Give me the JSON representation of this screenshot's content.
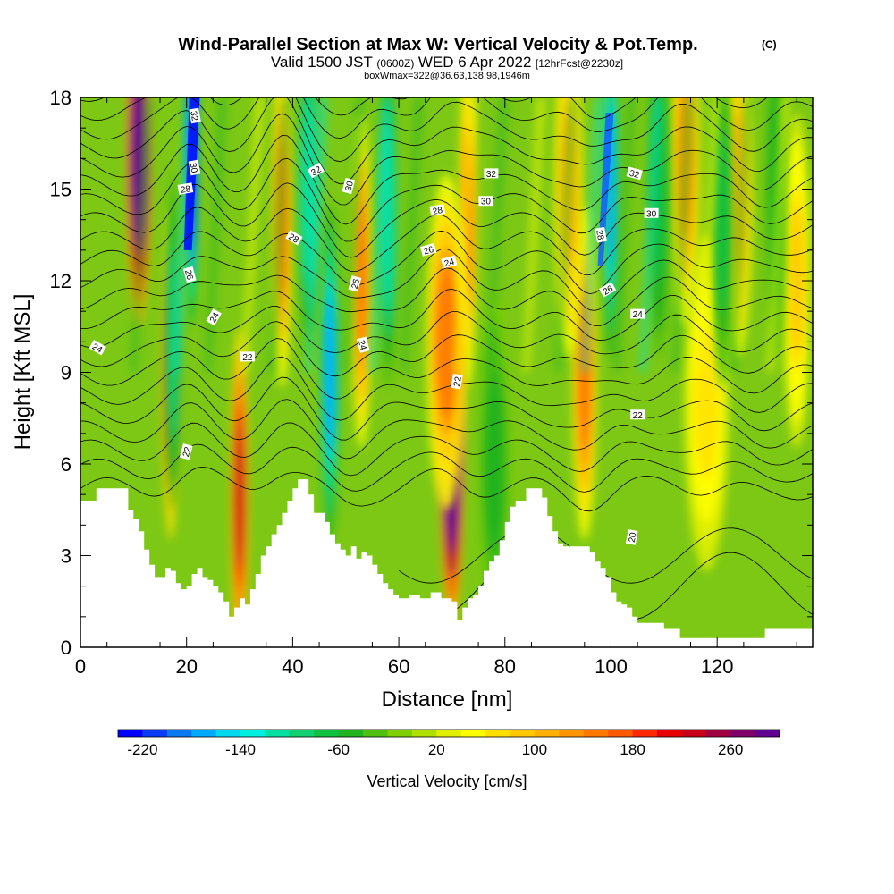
{
  "header": {
    "title_main": "Wind-Parallel Section at Max W: Vertical Velocity & Pot.Temp.",
    "title_mark": "(C)",
    "valid_a": "Valid 1500 JST",
    "valid_b": "(0600Z)",
    "valid_c": "WED 6 Apr 2022",
    "valid_d": "[12hrFcst@2230z]",
    "box_info": "boxWmax=322@36.63,138.98,1946m"
  },
  "chart_data": {
    "type": "heatmap",
    "xlabel": "Distance [nm]",
    "ylabel": "Height [Kft MSL]",
    "xlim": [
      0,
      138
    ],
    "ylim": [
      0,
      18
    ],
    "xticks": [
      0,
      20,
      40,
      60,
      80,
      100,
      120
    ],
    "yticks": [
      0,
      3,
      6,
      9,
      12,
      15,
      18
    ],
    "colorbar": {
      "label": "Vertical Velocity [cm/s]",
      "range": [
        -240,
        300
      ],
      "tick_values": [
        -220,
        -140,
        -60,
        20,
        100,
        180,
        260
      ],
      "tick_labels": [
        "-220",
        "-140",
        "-60",
        "20",
        "100",
        "180",
        "260"
      ],
      "colors": [
        "#0000ff",
        "#0a3cf5",
        "#0a78f0",
        "#00aaff",
        "#00d8f0",
        "#00f0e0",
        "#00e0a0",
        "#10d070",
        "#10c040",
        "#20b420",
        "#50c010",
        "#80d000",
        "#b0e000",
        "#e0f000",
        "#ffff00",
        "#ffe000",
        "#ffc800",
        "#ffb000",
        "#ff9600",
        "#ff7800",
        "#ff5a00",
        "#ff2800",
        "#e80000",
        "#c80018",
        "#a00040",
        "#80006a",
        "#600090"
      ]
    },
    "terrain_kft": [
      [
        0,
        4.8
      ],
      [
        2,
        4.8
      ],
      [
        3,
        5.2
      ],
      [
        8,
        5.2
      ],
      [
        9,
        4.5
      ],
      [
        10,
        4.2
      ],
      [
        11,
        3.8
      ],
      [
        12,
        3.2
      ],
      [
        13,
        2.7
      ],
      [
        14,
        2.3
      ],
      [
        15,
        2.3
      ],
      [
        16,
        2.6
      ],
      [
        17,
        2.5
      ],
      [
        18,
        2.1
      ],
      [
        19,
        1.9
      ],
      [
        20,
        2.0
      ],
      [
        21,
        2.4
      ],
      [
        22,
        2.6
      ],
      [
        23,
        2.3
      ],
      [
        24,
        2.2
      ],
      [
        25,
        2.0
      ],
      [
        26,
        1.8
      ],
      [
        27,
        1.5
      ],
      [
        28,
        1.0
      ],
      [
        29,
        1.3
      ],
      [
        30,
        1.6
      ],
      [
        31,
        1.4
      ],
      [
        32,
        1.9
      ],
      [
        33,
        2.4
      ],
      [
        34,
        3.0
      ],
      [
        35,
        3.3
      ],
      [
        36,
        3.7
      ],
      [
        37,
        4.0
      ],
      [
        38,
        4.4
      ],
      [
        39,
        4.8
      ],
      [
        40,
        5.2
      ],
      [
        41,
        5.5
      ],
      [
        42,
        5.5
      ],
      [
        43,
        5.0
      ],
      [
        44,
        4.4
      ],
      [
        45,
        4.4
      ],
      [
        46,
        4.1
      ],
      [
        47,
        3.7
      ],
      [
        48,
        3.4
      ],
      [
        49,
        3.2
      ],
      [
        50,
        3.0
      ],
      [
        51,
        3.3
      ],
      [
        52,
        2.9
      ],
      [
        53,
        3.1
      ],
      [
        54,
        3.0
      ],
      [
        55,
        2.7
      ],
      [
        56,
        2.4
      ],
      [
        57,
        2.1
      ],
      [
        58,
        1.9
      ],
      [
        59,
        1.7
      ],
      [
        60,
        1.6
      ],
      [
        62,
        1.7
      ],
      [
        64,
        1.6
      ],
      [
        66,
        1.8
      ],
      [
        68,
        1.6
      ],
      [
        70,
        1.5
      ],
      [
        71,
        0.9
      ],
      [
        72,
        1.3
      ],
      [
        73,
        1.6
      ],
      [
        74,
        1.7
      ],
      [
        75,
        2.0
      ],
      [
        76,
        2.5
      ],
      [
        77,
        2.8
      ],
      [
        78,
        3.0
      ],
      [
        79,
        3.5
      ],
      [
        80,
        4.1
      ],
      [
        81,
        4.6
      ],
      [
        82,
        4.8
      ],
      [
        83,
        4.8
      ],
      [
        84,
        5.2
      ],
      [
        86,
        5.2
      ],
      [
        87,
        4.9
      ],
      [
        88,
        4.3
      ],
      [
        89,
        3.8
      ],
      [
        90,
        3.4
      ],
      [
        91,
        3.3
      ],
      [
        92,
        3.3
      ],
      [
        95,
        3.3
      ],
      [
        96,
        3.1
      ],
      [
        97,
        2.8
      ],
      [
        98,
        2.6
      ],
      [
        99,
        2.3
      ],
      [
        100,
        1.8
      ],
      [
        101,
        1.5
      ],
      [
        102,
        1.4
      ],
      [
        103,
        1.3
      ],
      [
        104,
        1.0
      ],
      [
        105,
        0.8
      ],
      [
        108,
        0.8
      ],
      [
        110,
        0.6
      ],
      [
        113,
        0.3
      ],
      [
        128,
        0.3
      ],
      [
        129,
        0.6
      ],
      [
        138,
        0.6
      ]
    ],
    "updrafts": [
      [
        11,
        16,
        2.2,
        320
      ],
      [
        30,
        5,
        1.6,
        200
      ],
      [
        17,
        9,
        1.5,
        170
      ],
      [
        38,
        14,
        1.8,
        130
      ],
      [
        53,
        12,
        1.8,
        130
      ],
      [
        73,
        14,
        1.6,
        120
      ],
      [
        70,
        6.2,
        2.2,
        340
      ],
      [
        69,
        10,
        3.6,
        120
      ],
      [
        95,
        9,
        2.2,
        130
      ],
      [
        92,
        15,
        2.5,
        90
      ],
      [
        114,
        16,
        2.6,
        110
      ],
      [
        124,
        15,
        2.5,
        90
      ],
      [
        118,
        8,
        4,
        40
      ],
      [
        135,
        12,
        2.5,
        60
      ]
    ],
    "downdrafts": [
      [
        21,
        16,
        1.2,
        240
      ],
      [
        17.5,
        10,
        1.6,
        90
      ],
      [
        47,
        9,
        1.6,
        160
      ],
      [
        43,
        15,
        2,
        110
      ],
      [
        58,
        14,
        1.8,
        110
      ],
      [
        100,
        15,
        1.4,
        160
      ],
      [
        109,
        15,
        2,
        70
      ],
      [
        78,
        6,
        3,
        40
      ],
      [
        121,
        14,
        2,
        60
      ],
      [
        131,
        15,
        1.8,
        50
      ]
    ],
    "theta_labels": [
      {
        "text": "32",
        "x": 21.5,
        "y": 17.4,
        "rot": 80
      },
      {
        "text": "30",
        "x": 21.4,
        "y": 15.7,
        "rot": 80
      },
      {
        "text": "28",
        "x": 19.8,
        "y": 15.0,
        "rot": -10
      },
      {
        "text": "26",
        "x": 20.5,
        "y": 12.2,
        "rot": 75
      },
      {
        "text": "24",
        "x": 25.2,
        "y": 10.8,
        "rot": -60
      },
      {
        "text": "24",
        "x": 3.2,
        "y": 9.8,
        "rot": 30
      },
      {
        "text": "22",
        "x": 31.5,
        "y": 9.5,
        "rot": 0
      },
      {
        "text": "22",
        "x": 20.0,
        "y": 6.4,
        "rot": -75
      },
      {
        "text": "32",
        "x": 44.4,
        "y": 15.6,
        "rot": -30
      },
      {
        "text": "30",
        "x": 50.6,
        "y": 15.1,
        "rot": -75
      },
      {
        "text": "28",
        "x": 40.2,
        "y": 13.4,
        "rot": 30
      },
      {
        "text": "26",
        "x": 51.8,
        "y": 11.9,
        "rot": -75
      },
      {
        "text": "24",
        "x": 53.2,
        "y": 9.9,
        "rot": 75
      },
      {
        "text": "32",
        "x": 77.4,
        "y": 15.5,
        "rot": 0
      },
      {
        "text": "30",
        "x": 76.4,
        "y": 14.6,
        "rot": 0
      },
      {
        "text": "28",
        "x": 67.3,
        "y": 14.3,
        "rot": -10
      },
      {
        "text": "26",
        "x": 65.6,
        "y": 13.0,
        "rot": -15
      },
      {
        "text": "24",
        "x": 69.5,
        "y": 12.6,
        "rot": -15
      },
      {
        "text": "22",
        "x": 71.0,
        "y": 8.7,
        "rot": -80
      },
      {
        "text": "32",
        "x": 104.4,
        "y": 15.5,
        "rot": 15
      },
      {
        "text": "30",
        "x": 107.6,
        "y": 14.2,
        "rot": 0
      },
      {
        "text": "28",
        "x": 98.0,
        "y": 13.5,
        "rot": 80
      },
      {
        "text": "26",
        "x": 99.4,
        "y": 11.7,
        "rot": -30
      },
      {
        "text": "24",
        "x": 105.0,
        "y": 10.9,
        "rot": 0
      },
      {
        "text": "22",
        "x": 105.0,
        "y": 7.6,
        "rot": 0
      },
      {
        "text": "20",
        "x": 104.0,
        "y": 3.6,
        "rot": -80
      }
    ]
  }
}
